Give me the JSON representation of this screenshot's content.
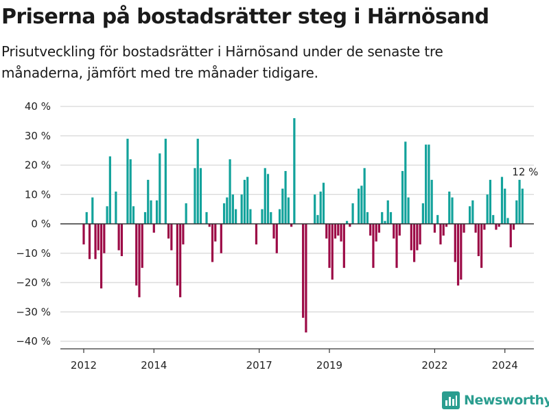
{
  "title": "Priserna på bostadsrätter steg i Härnösand",
  "subtitle": "Prisutveckling för bostadsrätter i Härnösand under de senaste tre månaderna, jämfört med tre månader tidigare.",
  "logo": {
    "text": "Newsworthy",
    "icon": "bar-chart-logo-icon",
    "color": "#2a9d8f"
  },
  "chart_data": {
    "type": "bar",
    "x_start": "2012-01",
    "x_interval": "month",
    "values": [
      -7,
      4,
      -12,
      9,
      -12,
      -9,
      -22,
      -10,
      6,
      23,
      0,
      11,
      -9,
      -11,
      0,
      29,
      22,
      6,
      -21,
      -25,
      -15,
      4,
      15,
      8,
      -3,
      8,
      24,
      0,
      29,
      -5,
      -9,
      0,
      -21,
      -25,
      -7,
      7,
      0,
      0,
      19,
      29,
      19,
      0,
      4,
      -1,
      -13,
      -6,
      0,
      -10,
      7,
      9,
      22,
      10,
      5,
      0,
      10,
      15,
      16,
      5,
      0,
      -7,
      0,
      5,
      19,
      17,
      4,
      -5,
      -10,
      5,
      12,
      18,
      9,
      -1,
      36,
      0,
      0,
      -32,
      -37,
      0,
      0,
      10,
      3,
      11,
      14,
      -5,
      -15,
      -19,
      -5,
      -4,
      -6,
      -15,
      1,
      -1,
      7,
      0,
      12,
      13,
      19,
      4,
      -4,
      -15,
      -6,
      -3,
      4,
      1,
      8,
      4,
      -5,
      -15,
      -4,
      18,
      28,
      9,
      -9,
      -13,
      -9,
      -7,
      7,
      27,
      27,
      15,
      -3,
      3,
      -7,
      -4,
      -1,
      11,
      9,
      -13,
      -21,
      -19,
      -3,
      0,
      6,
      8,
      -3,
      -11,
      -15,
      -2,
      10,
      15,
      3,
      -2,
      -1,
      16,
      12,
      2,
      -8,
      -2,
      8,
      15,
      12
    ],
    "ylim": [
      -40,
      40
    ],
    "ytick_values": [
      -40,
      -30,
      -20,
      -10,
      0,
      10,
      20,
      30,
      40
    ],
    "ytick_labels": [
      "−40 %",
      "−30 %",
      "−20 %",
      "−10 %",
      "0 %",
      "10 %",
      "20 %",
      "30 %",
      "40 %"
    ],
    "xtick_labels": [
      "2012",
      "2014",
      "2017",
      "2019",
      "2022",
      "2024"
    ],
    "xtick_months": [
      0,
      24,
      60,
      84,
      120,
      144
    ],
    "annotation": {
      "text": "12 %",
      "index": 150
    },
    "colors": {
      "positive": "#12a29b",
      "negative": "#9c0a46",
      "grid": "#dddddd",
      "axis": "#333333",
      "text": "#222222"
    },
    "grid": true
  }
}
